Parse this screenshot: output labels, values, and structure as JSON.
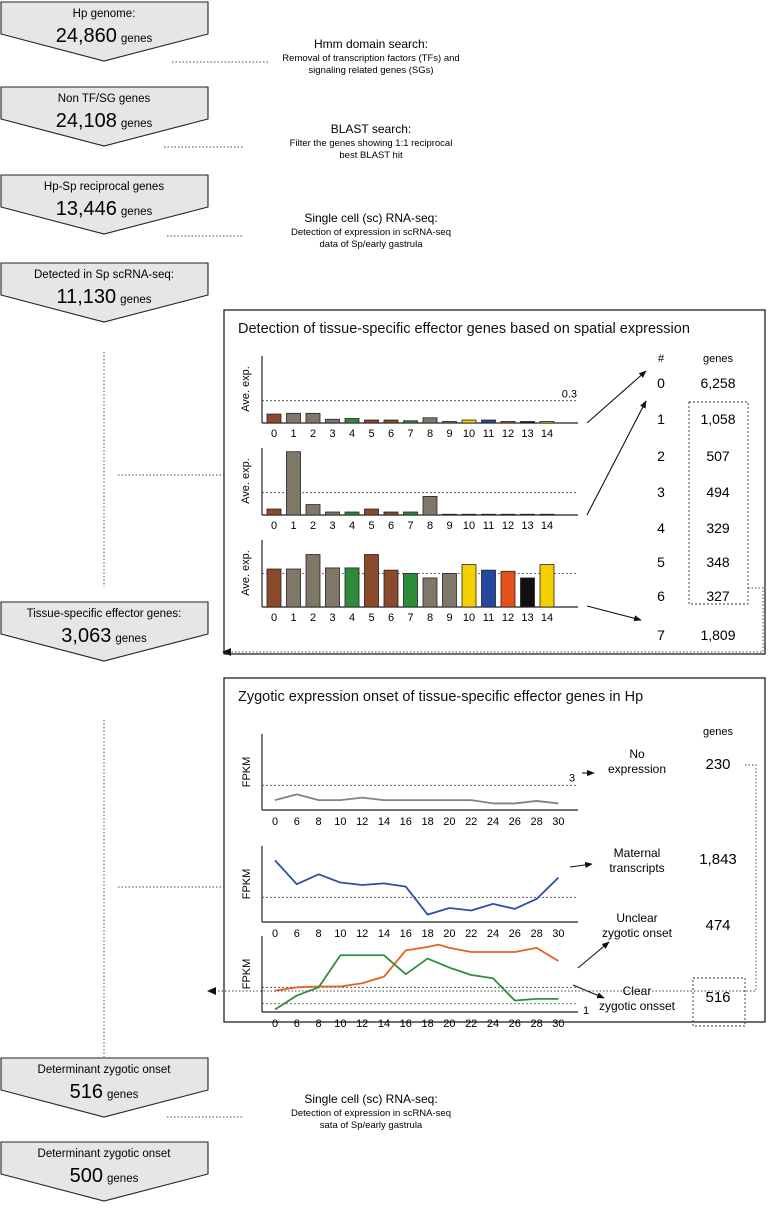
{
  "funnel": [
    {
      "label": "Hp genome:",
      "count": "24,860",
      "unit": "genes"
    },
    {
      "label": "Non TF/SG genes",
      "count": "24,108",
      "unit": "genes"
    },
    {
      "label": "Hp-Sp reciprocal genes",
      "count": "13,446",
      "unit": "genes"
    },
    {
      "label": "Detected in Sp scRNA-seq:",
      "count": "11,130",
      "unit": "genes"
    },
    {
      "label": "Tissue-specific effector genes:",
      "count": "3,063",
      "unit": "genes"
    },
    {
      "label": "Determinant zygotic onset",
      "count": "516",
      "unit": "genes"
    },
    {
      "label": "Determinant zygotic onset",
      "count": "500",
      "unit": "genes"
    }
  ],
  "steps": [
    {
      "title": "Hmm domain search:",
      "line1": "Removal of transcription factors (TFs) and",
      "line2": "signaling related genes (SGs)"
    },
    {
      "title": "BLAST search:",
      "line1": "Filter the genes showing 1:1 reciprocal",
      "line2": "best BLAST hit"
    },
    {
      "title": "Single cell (sc) RNA-seq:",
      "line1": "Detection of expression in scRNA-seq",
      "line2": "data of Sp/early gastrula"
    },
    {
      "title": "Single cell (sc) RNA-seq:",
      "line1": "Detection of expression in scRNA-seq",
      "line2": "sata of Sp/early gastrula"
    }
  ],
  "panel1": {
    "title": "Detection of tissue-specific effector genes based on spatial expression",
    "ylabel": "Ave. exp.",
    "threshold_label": "0.3",
    "col_num": "#",
    "col_genes": "genes",
    "table": [
      {
        "num": "0",
        "genes": "6,258"
      },
      {
        "num": "1",
        "genes": "1,058"
      },
      {
        "num": "2",
        "genes": "507"
      },
      {
        "num": "3",
        "genes": "494"
      },
      {
        "num": "4",
        "genes": "329"
      },
      {
        "num": "5",
        "genes": "348"
      },
      {
        "num": "6",
        "genes": "327"
      },
      {
        "num": "7",
        "genes": "1,809"
      }
    ]
  },
  "panel2": {
    "title": "Zygotic expression onset of tissue-specific effector genes in Hp",
    "ylabel": "FPKM",
    "threshold_top": "3",
    "threshold_bottom": "1",
    "col_genes": "genes",
    "categories": [
      {
        "line1": "No",
        "line2": "expression",
        "genes": "230"
      },
      {
        "line1": "Maternal",
        "line2": "transcripts",
        "genes": "1,843"
      },
      {
        "line1": "Unclear",
        "line2": "zygotic onset",
        "genes": "474"
      },
      {
        "line1": "Clear",
        "line2": "zygotic onsset",
        "genes": "516"
      }
    ]
  },
  "colors": {
    "funnel_fill": "#e6e6e6",
    "grey": "#7f7868",
    "brown": "#8b4a2b",
    "green": "#2e8b3a",
    "yellow": "#f5d000",
    "blue": "#2248a0",
    "orange": "#e8501a",
    "black": "#111111",
    "line_grey": "#8a8275",
    "line_blue": "#2a50a8",
    "line_orange": "#e8601e",
    "line_green": "#2f8f3e"
  },
  "chart_data": [
    {
      "type": "bar",
      "ylabel": "Ave. exp.",
      "categories": [
        "0",
        "1",
        "2",
        "3",
        "4",
        "5",
        "6",
        "7",
        "8",
        "9",
        "10",
        "11",
        "12",
        "13",
        "14"
      ],
      "threshold": 0.3,
      "ylim": [
        0,
        0.9
      ],
      "values": [
        0.12,
        0.13,
        0.13,
        0.05,
        0.06,
        0.04,
        0.04,
        0.03,
        0.07,
        0.02,
        0.04,
        0.04,
        0.02,
        0.02,
        0.02
      ],
      "bar_colors": [
        "brown",
        "grey",
        "grey",
        "grey",
        "green",
        "brown",
        "brown",
        "green",
        "grey",
        "grey",
        "yellow",
        "blue",
        "orange",
        "black",
        "yellow"
      ]
    },
    {
      "type": "bar",
      "ylabel": "Ave. exp.",
      "categories": [
        "0",
        "1",
        "2",
        "3",
        "4",
        "5",
        "6",
        "7",
        "8",
        "9",
        "10",
        "11",
        "12",
        "13",
        "14"
      ],
      "threshold": 0.3,
      "ylim": [
        0,
        0.9
      ],
      "values": [
        0.08,
        0.85,
        0.14,
        0.04,
        0.04,
        0.08,
        0.04,
        0.04,
        0.25,
        0.01,
        0.01,
        0.01,
        0.01,
        0.01,
        0.01
      ],
      "bar_colors": [
        "brown",
        "grey",
        "grey",
        "grey",
        "green",
        "brown",
        "brown",
        "green",
        "grey",
        "grey",
        "yellow",
        "blue",
        "orange",
        "black",
        "yellow"
      ]
    },
    {
      "type": "bar",
      "ylabel": "Ave. exp.",
      "categories": [
        "0",
        "1",
        "2",
        "3",
        "4",
        "5",
        "6",
        "7",
        "8",
        "9",
        "10",
        "11",
        "12",
        "13",
        "14"
      ],
      "threshold": 0.3,
      "ylim": [
        0,
        0.6
      ],
      "values": [
        0.34,
        0.34,
        0.47,
        0.35,
        0.35,
        0.47,
        0.33,
        0.3,
        0.26,
        0.3,
        0.38,
        0.33,
        0.32,
        0.26,
        0.38
      ],
      "bar_colors": [
        "brown",
        "grey",
        "grey",
        "grey",
        "green",
        "brown",
        "brown",
        "green",
        "grey",
        "grey",
        "yellow",
        "blue",
        "orange",
        "black",
        "yellow"
      ]
    },
    {
      "type": "line",
      "ylabel": "FPKM",
      "x": [
        0,
        6,
        8,
        10,
        12,
        14,
        16,
        18,
        20,
        22,
        24,
        26,
        28,
        30
      ],
      "threshold": 3,
      "ylim": [
        0,
        9
      ],
      "series": [
        {
          "color": "line_grey",
          "values": [
            1.2,
            1.9,
            1.2,
            1.2,
            1.5,
            1.2,
            1.2,
            1.2,
            1.2,
            1.2,
            0.8,
            0.8,
            1.1,
            0.8
          ]
        }
      ]
    },
    {
      "type": "line",
      "ylabel": "FPKM",
      "x": [
        0,
        6,
        8,
        10,
        12,
        14,
        16,
        18,
        20,
        22,
        24,
        26,
        28,
        30
      ],
      "ylim": [
        0,
        9
      ],
      "series": [
        {
          "color": "line_blue",
          "values": [
            7.5,
            4.6,
            5.8,
            4.8,
            4.5,
            4.7,
            4.3,
            0.9,
            1.7,
            1.4,
            2.2,
            1.6,
            2.8,
            5.4
          ]
        }
      ]
    },
    {
      "type": "line",
      "ylabel": "FPKM",
      "x": [
        0,
        6,
        8,
        10,
        12,
        14,
        16,
        18,
        19,
        20,
        22,
        24,
        26,
        28,
        30
      ],
      "threshold": 1,
      "ylim": [
        0,
        9
      ],
      "series": [
        {
          "color": "line_orange",
          "x": [
            0,
            6,
            8,
            10,
            12,
            14,
            16,
            18,
            19,
            20,
            22,
            24,
            26,
            28,
            30
          ],
          "values": [
            2.6,
            3.0,
            3.1,
            3.1,
            3.5,
            4.3,
            7.5,
            7.9,
            8.2,
            7.8,
            7.3,
            7.3,
            7.3,
            7.8,
            6.2
          ]
        },
        {
          "color": "line_green",
          "x": [
            0,
            6,
            8,
            10,
            12,
            14,
            16,
            18,
            20,
            22,
            24,
            26,
            28,
            30
          ],
          "values": [
            0.3,
            2.0,
            3.0,
            6.9,
            6.9,
            6.9,
            4.6,
            6.5,
            5.4,
            4.5,
            4.1,
            1.4,
            1.6,
            1.6
          ]
        }
      ]
    }
  ]
}
